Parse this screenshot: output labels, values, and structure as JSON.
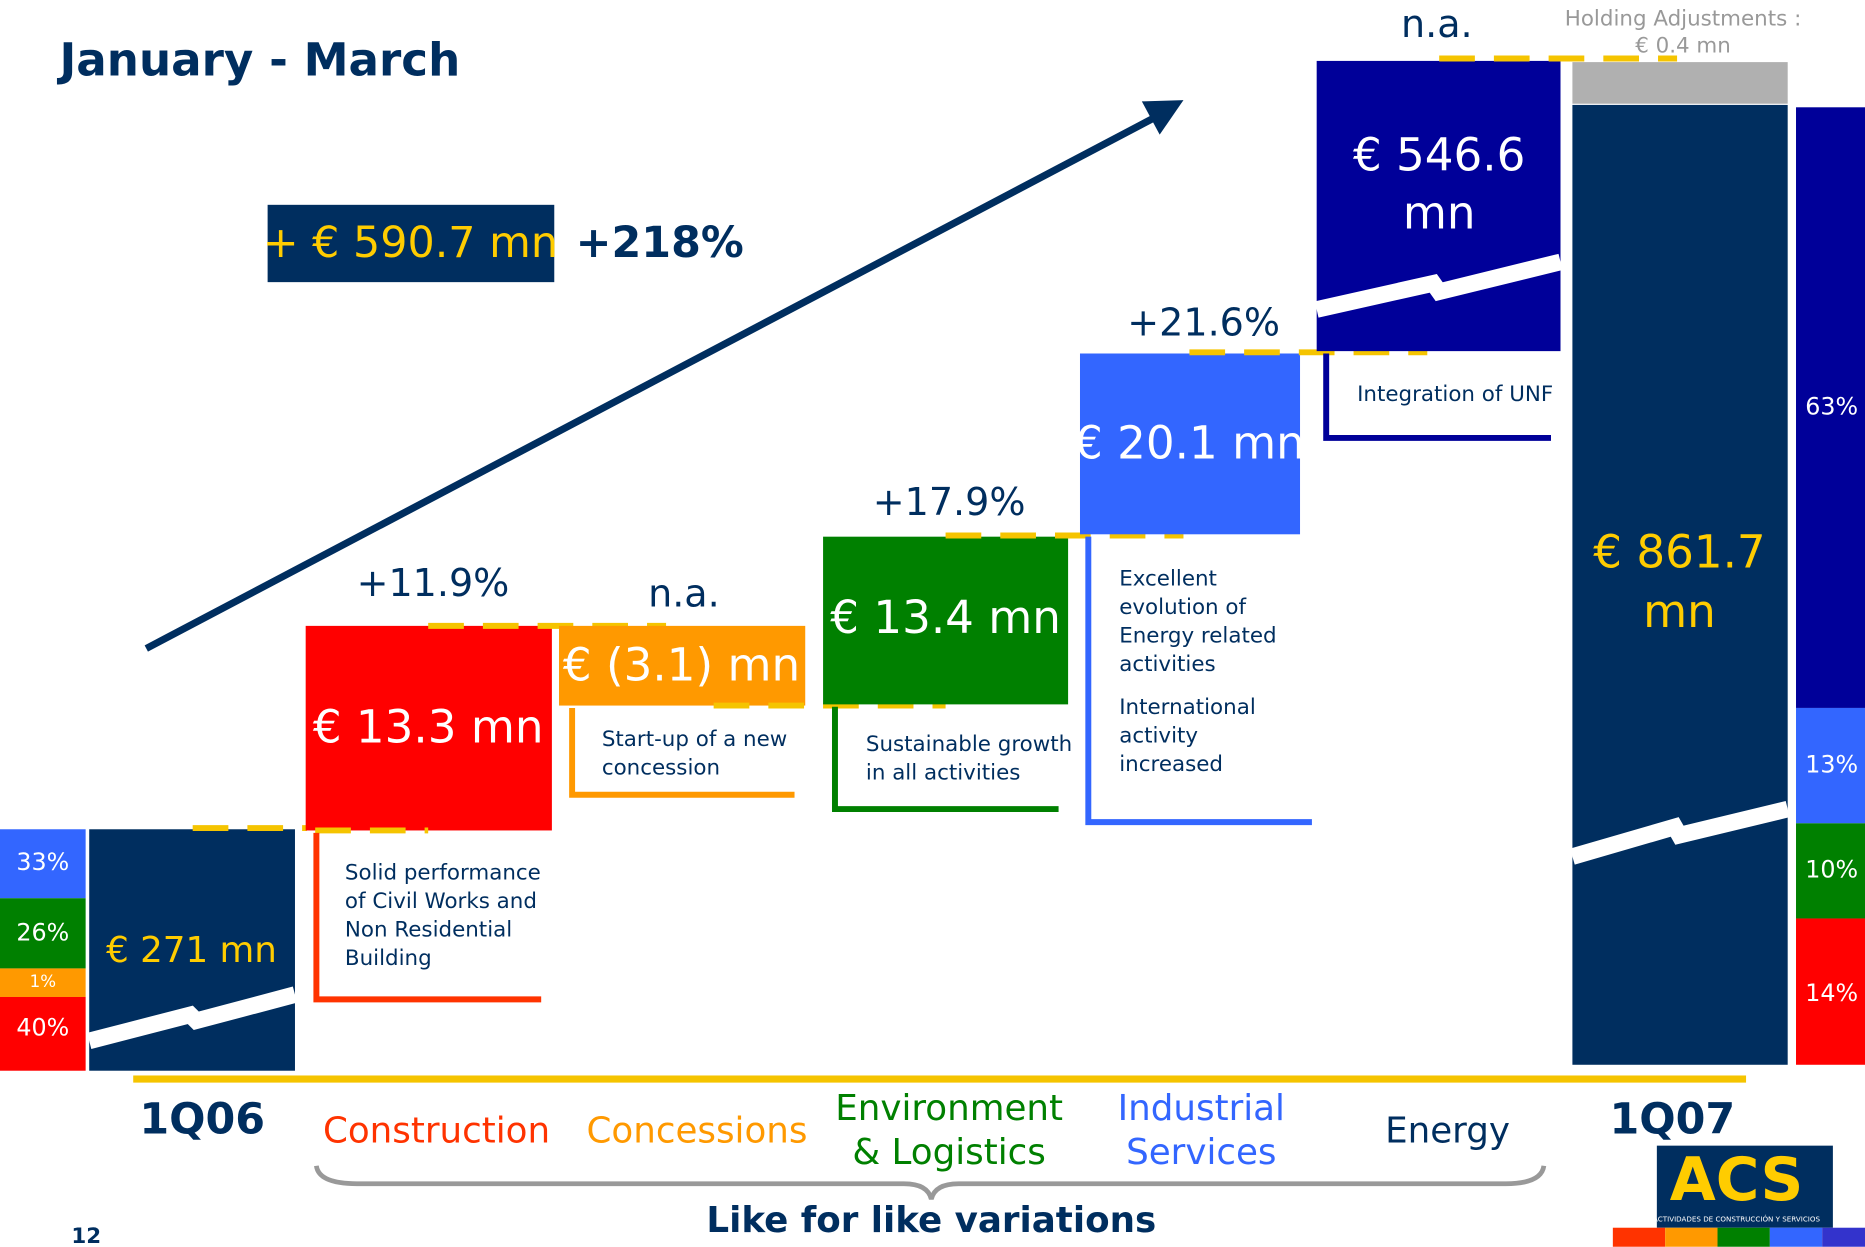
{
  "title": "January - March",
  "total_change": {
    "value": "+ € 590.7 mn",
    "percent": "+218%"
  },
  "start": {
    "label": "1Q06",
    "value": "€ 271 mn",
    "breakdown": [
      "33%",
      "26%",
      "1%",
      "40%"
    ]
  },
  "steps": [
    {
      "label": [
        "Construction"
      ],
      "value": "€ 13.3 mn",
      "change": "+11.9%",
      "note": [
        "Solid performance",
        "of Civil Works and",
        "Non Residential",
        "Building"
      ]
    },
    {
      "label": [
        "Concessions"
      ],
      "value": "€ (3.1) mn",
      "change": "n.a.",
      "note": [
        "Start-up of a new",
        "concession"
      ]
    },
    {
      "label": [
        "Environment",
        "& Logistics"
      ],
      "value": "€ 13.4 mn",
      "change": "+17.9%",
      "note": [
        "Sustainable growth",
        "in all activities"
      ]
    },
    {
      "label": [
        "Industrial",
        "Services"
      ],
      "value": "€ 20.1 mn",
      "change": "+21.6%",
      "note": [
        "Excellent",
        "evolution of",
        "Energy related",
        "activities",
        "International",
        "activity",
        "increased"
      ]
    },
    {
      "label": [
        "Energy"
      ],
      "value": [
        "€ 546.6",
        "mn"
      ],
      "change": "n.a.",
      "note": [
        "Integration of UNF"
      ]
    }
  ],
  "holding": [
    "Holding Adjustments :",
    "€ 0.4 mn"
  ],
  "end": {
    "label": "1Q07",
    "value": [
      "€ 861.7",
      "mn"
    ],
    "breakdown": [
      "63%",
      "13%",
      "10%",
      "14%"
    ]
  },
  "footer": "Like for like variations",
  "page": "12",
  "logo": {
    "name": "ACS",
    "subtitle": "ACTIVIDADES DE CONSTRUCCIÓN Y SERVICIOS"
  }
}
